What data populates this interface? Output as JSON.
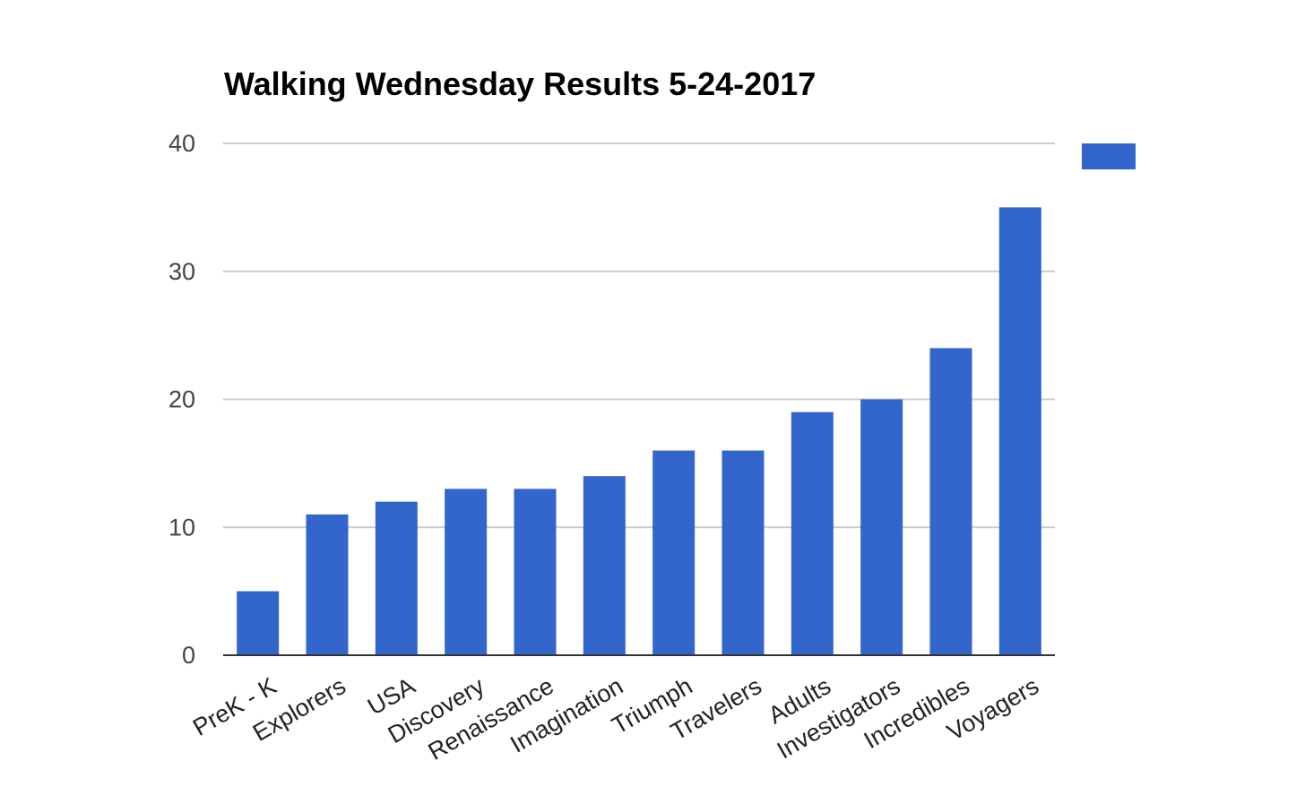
{
  "chart_data": {
    "type": "bar",
    "title": "Walking Wednesday Results 5-24-2017",
    "xlabel": "",
    "ylabel": "",
    "categories": [
      "PreK - K",
      "Explorers",
      "USA",
      "Discovery",
      "Renaissance",
      "Imagination",
      "Triumph",
      "Travelers",
      "Adults",
      "Investigators",
      "Incredibles",
      "Voyagers"
    ],
    "series": [
      {
        "values": [
          5,
          11,
          12,
          13,
          13,
          14,
          16,
          16,
          19,
          20,
          24,
          35
        ]
      }
    ],
    "ylim": [
      0,
      40
    ],
    "yticks": [
      0,
      10,
      20,
      30,
      40
    ],
    "grid": true,
    "legend": "top-right",
    "colors": {
      "bar": "#3366cc",
      "grid": "#cccccc",
      "axis": "#333333"
    }
  }
}
